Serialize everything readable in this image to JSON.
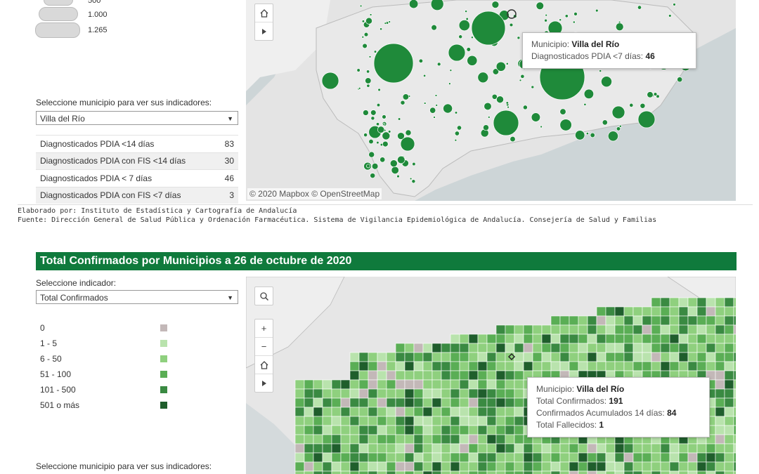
{
  "bubble_legend": {
    "values": [
      "500",
      "1.000",
      "1.265"
    ]
  },
  "top": {
    "selector_label": "Seleccione municipio para ver sus indicadores:",
    "selected_municipio": "Villa del Río",
    "indicators": [
      {
        "name": "Diagnosticados PDIA <14 días",
        "value": "83"
      },
      {
        "name": "Diagnosticados PDIA con FIS <14 días",
        "value": "30"
      },
      {
        "name": "Diagnosticados PDIA < 7 días",
        "value": "46"
      },
      {
        "name": "Diagnosticados PDIA con FIS <7 días",
        "value": "3"
      }
    ],
    "tooltip": {
      "municipio_label": "Municipio:",
      "municipio_value": "Villa del Río",
      "metric_label": "Diagnosticados PDIA <7 días:",
      "metric_value": "46"
    },
    "attribution": "© 2020 Mapbox  © OpenStreetMap"
  },
  "footer": {
    "elaborado": "Elaborado por: Instituto de Estadística y Cartografía de Andalucía",
    "fuente": "Fuente: Dirección General de Salud Pública y Ordenación Farmacéutica. Sistema de Vigilancia Epidemiológica de Andalucía. Consejería de Salud y Familias"
  },
  "bottom": {
    "title": "Total Confirmados por Municipios a 26 de octubre de 2020",
    "indicator_label": "Seleccione indicador:",
    "indicator_selected": "Total Confirmados",
    "legend": [
      {
        "label": "0",
        "color": "#c3b8b8"
      },
      {
        "label": "1 - 5",
        "color": "#b9e3ad"
      },
      {
        "label": "6 - 50",
        "color": "#8fd07e"
      },
      {
        "label": "51 - 100",
        "color": "#5aae55"
      },
      {
        "label": "101 - 500",
        "color": "#3a8a42"
      },
      {
        "label": "501 o más",
        "color": "#1f5e2c"
      }
    ],
    "selector_label": "Seleccione municipio para ver sus indicadores:",
    "tooltip": {
      "municipio_label": "Municipio:",
      "municipio_value": "Villa del Río",
      "total_label": "Total Confirmados:",
      "total_value": "191",
      "acum_label": "Confirmados Acumulados 14 días:",
      "acum_value": "84",
      "fallecidos_label": "Total Fallecidos:",
      "fallecidos_value": "1"
    }
  },
  "icons": [
    "home-icon",
    "play-icon",
    "search-icon",
    "zoom-in-icon",
    "zoom-out-icon",
    "chevron-down-icon"
  ]
}
